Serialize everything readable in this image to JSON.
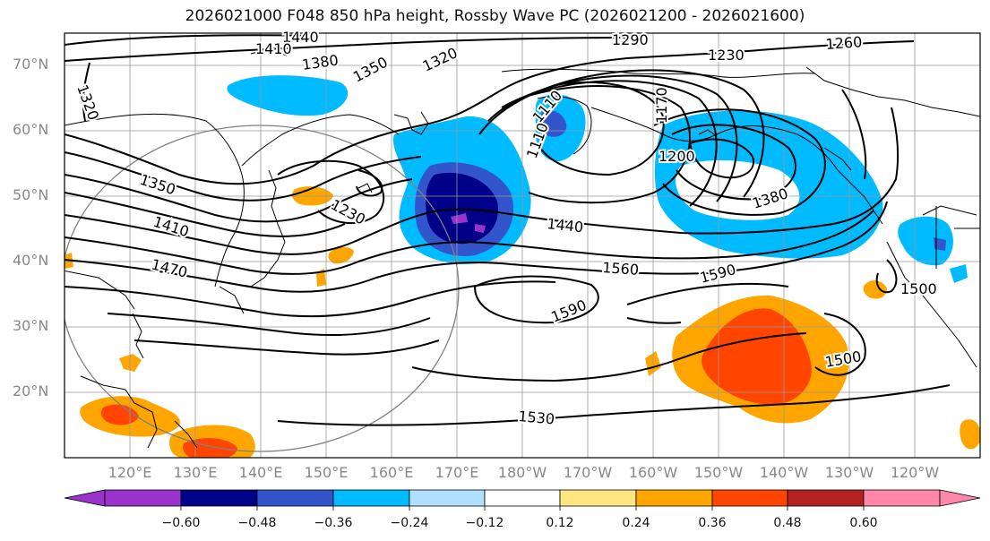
{
  "title": "2026021000 F048 850 hPa height, Rossby Wave PC (2026021200 - 2026021600)",
  "lat_labels": [
    "70°N",
    "60°N",
    "50°N",
    "40°N",
    "30°N",
    "20°N"
  ],
  "lon_labels": [
    "120°E",
    "130°E",
    "140°E",
    "150°E",
    "160°E",
    "170°E",
    "180°W",
    "170°W",
    "160°W",
    "150°W",
    "140°W",
    "130°W",
    "120°W"
  ],
  "contour_labels": [
    "1440",
    "1410",
    "1380",
    "1350",
    "1320",
    "1290",
    "1230",
    "1260",
    "1320",
    "1110",
    "1170",
    "1110",
    "1200",
    "1350",
    "1230",
    "1410",
    "1470",
    "1440",
    "1380",
    "1560",
    "1590",
    "1590",
    "1500",
    "1500",
    "1530"
  ],
  "colorbar": {
    "ticks": [
      "−0.60",
      "−0.48",
      "−0.36",
      "−0.24",
      "−0.12",
      "0.12",
      "0.24",
      "0.36",
      "0.48",
      "0.60"
    ],
    "colors": [
      "#9933cc",
      "#000088",
      "#3355cc",
      "#00bbff",
      "#b0e0ff",
      "#ffffff",
      "#ffe680",
      "#ffa500",
      "#ff4500",
      "#b22222",
      "#ff88aa",
      "#ff88aa"
    ]
  }
}
